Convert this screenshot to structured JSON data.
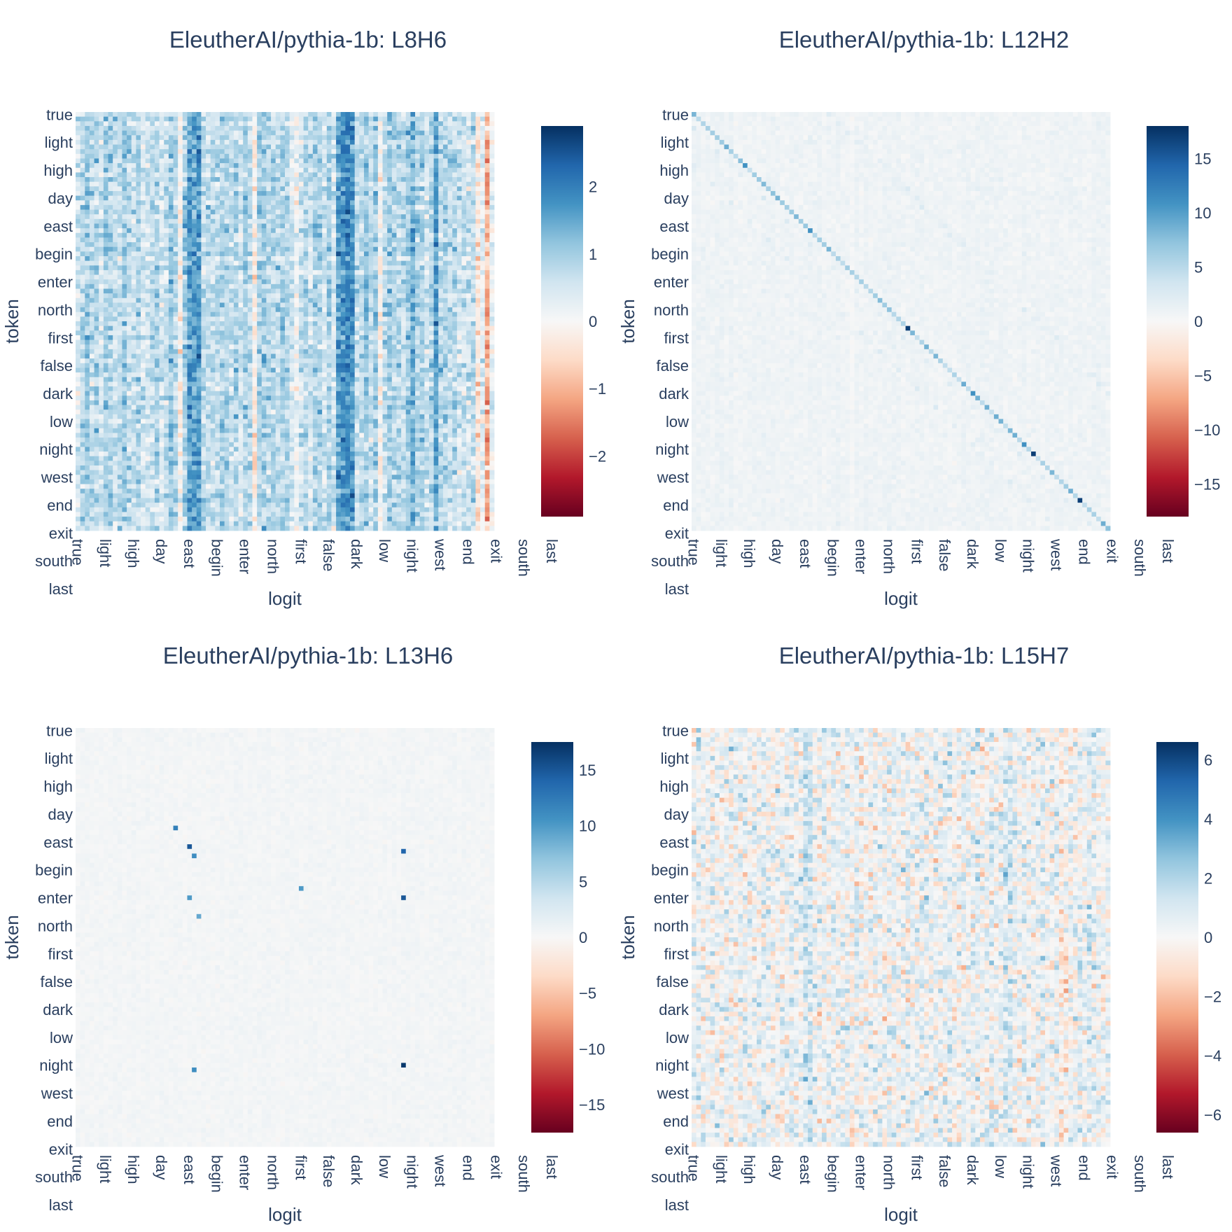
{
  "chart_data": [
    {
      "type": "heatmap",
      "title": "EleutherAI/pythia-1b: L8H6",
      "xlabel": "logit",
      "ylabel": "token",
      "y_tick_labels": [
        "true",
        "light",
        "high",
        "day",
        "east",
        "begin",
        "enter",
        "north",
        "first",
        "false",
        "dark",
        "low",
        "night",
        "west",
        "end",
        "exit",
        "south",
        "last"
      ],
      "x_tick_labels": [
        "true",
        "light",
        "high",
        "day",
        "east",
        "begin",
        "enter",
        "north",
        "first",
        "false",
        "dark",
        "low",
        "night",
        "west",
        "end",
        "exit",
        "south",
        "last"
      ],
      "zlim": [
        -2.9,
        2.9
      ],
      "colorbar_ticks": [
        2,
        1,
        0,
        -1,
        -2
      ],
      "colorbar_tick_labels": [
        "2",
        "1",
        "0",
        "−1",
        "−2"
      ],
      "pattern": "dense",
      "note": "mostly positive values (0 to ~2.5) with strong column stripes, sparse negatives near 0 to −1"
    },
    {
      "type": "heatmap",
      "title": "EleutherAI/pythia-1b: L12H2",
      "xlabel": "logit",
      "ylabel": "token",
      "y_tick_labels": [
        "true",
        "light",
        "high",
        "day",
        "east",
        "begin",
        "enter",
        "north",
        "first",
        "false",
        "dark",
        "low",
        "night",
        "west",
        "end",
        "exit",
        "south",
        "last"
      ],
      "x_tick_labels": [
        "true",
        "light",
        "high",
        "day",
        "east",
        "begin",
        "enter",
        "north",
        "first",
        "false",
        "dark",
        "low",
        "night",
        "west",
        "end",
        "exit",
        "south",
        "last"
      ],
      "zlim": [
        -18,
        18
      ],
      "colorbar_ticks": [
        15,
        10,
        5,
        0,
        -5,
        -10,
        -15
      ],
      "colorbar_tick_labels": [
        "15",
        "10",
        "5",
        "0",
        "−5",
        "−10",
        "−15"
      ],
      "pattern": "diagonal",
      "note": "strong main diagonal (up to ~17), weaker offset diagonals, background near 0–2"
    },
    {
      "type": "heatmap",
      "title": "EleutherAI/pythia-1b: L13H6",
      "xlabel": "logit",
      "ylabel": "token",
      "y_tick_labels": [
        "true",
        "light",
        "high",
        "day",
        "east",
        "begin",
        "enter",
        "north",
        "first",
        "false",
        "dark",
        "low",
        "night",
        "west",
        "end",
        "exit",
        "south",
        "last"
      ],
      "x_tick_labels": [
        "true",
        "light",
        "high",
        "day",
        "east",
        "begin",
        "enter",
        "north",
        "first",
        "false",
        "dark",
        "low",
        "night",
        "west",
        "end",
        "exit",
        "south",
        "last"
      ],
      "zlim": [
        -17.5,
        17.5
      ],
      "colorbar_ticks": [
        15,
        10,
        5,
        0,
        -5,
        -10,
        -15
      ],
      "colorbar_tick_labels": [
        "15",
        "10",
        "5",
        "0",
        "−5",
        "−10",
        "−15"
      ],
      "pattern": "sparse",
      "note": "near-zero background with a few isolated hot cells (~10–17)"
    },
    {
      "type": "heatmap",
      "title": "EleutherAI/pythia-1b: L15H7",
      "xlabel": "logit",
      "ylabel": "token",
      "y_tick_labels": [
        "true",
        "light",
        "high",
        "day",
        "east",
        "begin",
        "enter",
        "north",
        "first",
        "false",
        "dark",
        "low",
        "night",
        "west",
        "end",
        "exit",
        "south",
        "last"
      ],
      "x_tick_labels": [
        "true",
        "light",
        "high",
        "day",
        "east",
        "begin",
        "enter",
        "north",
        "first",
        "false",
        "dark",
        "low",
        "night",
        "west",
        "end",
        "exit",
        "south",
        "last"
      ],
      "zlim": [
        -6.6,
        6.6
      ],
      "colorbar_ticks": [
        6,
        4,
        2,
        0,
        -2,
        -4,
        -6
      ],
      "colorbar_tick_labels": [
        "6",
        "4",
        "2",
        "0",
        "−2",
        "−4",
        "−6"
      ],
      "pattern": "noisy",
      "note": "mixed positive and negative values roughly between −6 and 6"
    }
  ],
  "colorscale": [
    "#67001f",
    "#b2182b",
    "#d6604d",
    "#f4a582",
    "#fddbc7",
    "#f7f7f7",
    "#d1e5f0",
    "#92c5de",
    "#4393c3",
    "#2166ac",
    "#053061"
  ]
}
